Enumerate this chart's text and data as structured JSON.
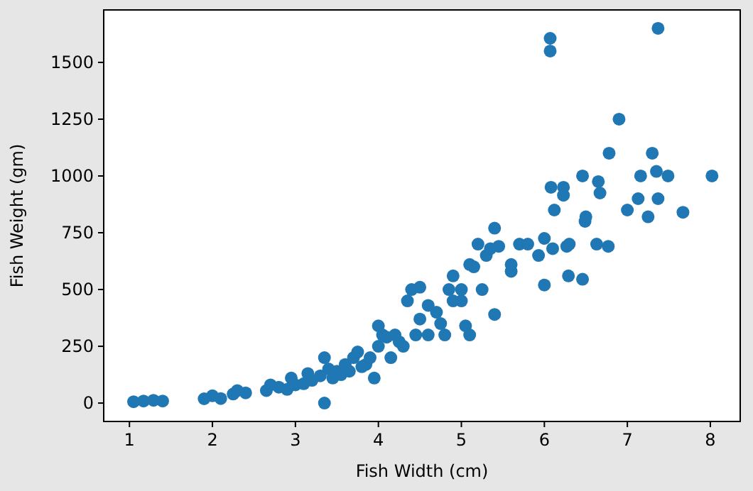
{
  "chart_data": {
    "type": "scatter",
    "xlabel": "Fish Width (cm)",
    "ylabel": "Fish Weight (gm)",
    "xlim": [
      0.69,
      8.36
    ],
    "ylim": [
      -81,
      1731
    ],
    "xticks": [
      1,
      2,
      3,
      4,
      5,
      6,
      7,
      8
    ],
    "yticks": [
      0,
      250,
      500,
      750,
      1000,
      1250,
      1500
    ],
    "grid": false,
    "marker": "circle",
    "series": [
      {
        "color": "#1f77b4",
        "x": [
          1.05,
          1.17,
          1.29,
          1.4,
          1.9,
          2.0,
          2.1,
          2.25,
          2.3,
          2.4,
          2.65,
          2.7,
          2.8,
          2.9,
          2.95,
          3.0,
          3.1,
          3.15,
          3.2,
          3.3,
          3.35,
          3.35,
          3.4,
          3.45,
          3.5,
          3.55,
          3.6,
          3.65,
          3.7,
          3.75,
          3.8,
          3.85,
          3.9,
          3.95,
          4.0,
          4.0,
          4.05,
          4.1,
          4.15,
          4.2,
          4.25,
          4.3,
          4.35,
          4.4,
          4.45,
          4.5,
          4.5,
          4.6,
          4.6,
          4.7,
          4.75,
          4.8,
          4.85,
          4.9,
          4.9,
          5.0,
          5.0,
          5.05,
          5.1,
          5.1,
          5.15,
          5.2,
          5.25,
          5.3,
          5.35,
          5.4,
          5.4,
          5.45,
          5.6,
          5.6,
          5.7,
          5.8,
          5.93,
          6.0,
          6.0,
          6.07,
          6.07,
          6.12,
          6.1,
          6.08,
          6.23,
          6.23,
          6.27,
          6.29,
          6.3,
          6.46,
          6.46,
          6.49,
          6.5,
          6.63,
          6.65,
          6.67,
          6.77,
          6.78,
          6.9,
          7.0,
          7.13,
          7.16,
          7.25,
          7.3,
          7.35,
          7.37,
          7.37,
          7.49,
          7.67,
          8.02
        ],
        "values": [
          6,
          9,
          12,
          9,
          19,
          32,
          20,
          40,
          55,
          45,
          55,
          80,
          70,
          60,
          110,
          80,
          85,
          130,
          100,
          120,
          0,
          200,
          150,
          110,
          140,
          125,
          170,
          140,
          200,
          225,
          160,
          170,
          200,
          110,
          250,
          340,
          300,
          290,
          200,
          300,
          270,
          250,
          450,
          500,
          300,
          510,
          370,
          300,
          430,
          400,
          350,
          300,
          500,
          560,
          450,
          450,
          500,
          340,
          300,
          610,
          600,
          700,
          500,
          650,
          680,
          770,
          390,
          690,
          580,
          610,
          700,
          700,
          650,
          725,
          520,
          1606,
          1550,
          850,
          680,
          950,
          950,
          915,
          690,
          560,
          700,
          1000,
          545,
          800,
          820,
          700,
          975,
          925,
          690,
          1100,
          1250,
          850,
          900,
          1000,
          820,
          1100,
          1020,
          1650,
          900,
          1000,
          840,
          1000
        ]
      }
    ]
  }
}
